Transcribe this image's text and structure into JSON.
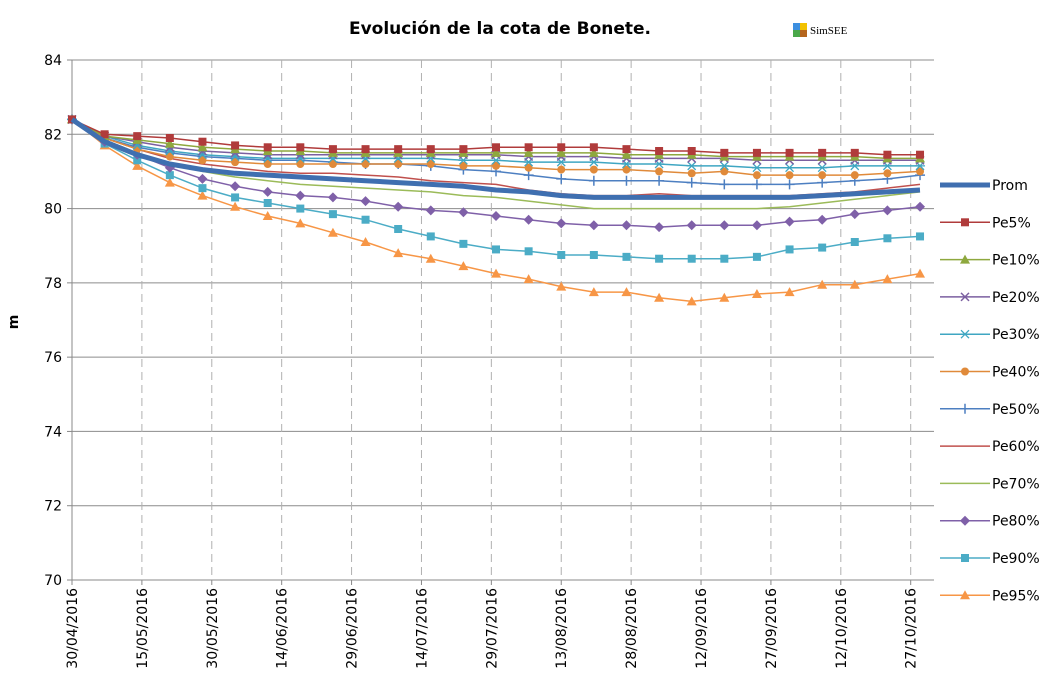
{
  "chart_data": {
    "type": "line",
    "title": "Evolución de la cota de Bonete.",
    "logo": "SimSEE",
    "y_label": "m",
    "x": [
      "30/04/2016",
      "07/05/2016",
      "14/05/2016",
      "21/05/2016",
      "28/05/2016",
      "04/06/2016",
      "11/06/2016",
      "18/06/2016",
      "25/06/2016",
      "02/07/2016",
      "09/07/2016",
      "16/07/2016",
      "23/07/2016",
      "30/07/2016",
      "06/08/2016",
      "13/08/2016",
      "20/08/2016",
      "27/08/2016",
      "03/09/2016",
      "10/09/2016",
      "17/09/2016",
      "24/09/2016",
      "01/10/2016",
      "08/10/2016",
      "15/10/2016",
      "22/10/2016",
      "29/10/2016"
    ],
    "xlim": [
      "30/04/2016",
      "01/11/2016"
    ],
    "xticks": [
      "30/04/2016",
      "15/05/2016",
      "30/05/2016",
      "14/06/2016",
      "29/06/2016",
      "14/07/2016",
      "29/07/2016",
      "13/08/2016",
      "28/08/2016",
      "12/09/2016",
      "27/09/2016",
      "12/10/2016",
      "27/10/2016"
    ],
    "ylim": [
      70,
      84
    ],
    "yticks": [
      70,
      72,
      74,
      76,
      78,
      80,
      82,
      84
    ],
    "grid": true,
    "legend": "right",
    "series": [
      {
        "name": "Prom",
        "color": "#3f6fb0",
        "marker": "none",
        "line_width": 5,
        "values": [
          82.4,
          81.8,
          81.45,
          81.2,
          81.05,
          80.95,
          80.9,
          80.85,
          80.8,
          80.75,
          80.7,
          80.65,
          80.6,
          80.5,
          80.45,
          80.35,
          80.3,
          80.3,
          80.3,
          80.3,
          80.3,
          80.3,
          80.3,
          80.35,
          80.4,
          80.45,
          80.5
        ]
      },
      {
        "name": "Pe5%",
        "color": "#b03b3b",
        "marker": "square",
        "line_width": 1.5,
        "values": [
          82.4,
          82.0,
          81.95,
          81.9,
          81.8,
          81.7,
          81.65,
          81.65,
          81.6,
          81.6,
          81.6,
          81.6,
          81.6,
          81.65,
          81.65,
          81.65,
          81.65,
          81.6,
          81.55,
          81.55,
          81.5,
          81.5,
          81.5,
          81.5,
          81.5,
          81.45,
          81.45
        ]
      },
      {
        "name": "Pe10%",
        "color": "#8ea83e",
        "marker": "triangle",
        "line_width": 1.5,
        "values": [
          82.4,
          81.95,
          81.85,
          81.75,
          81.65,
          81.6,
          81.55,
          81.55,
          81.5,
          81.5,
          81.5,
          81.5,
          81.5,
          81.5,
          81.5,
          81.5,
          81.5,
          81.45,
          81.45,
          81.45,
          81.4,
          81.4,
          81.4,
          81.4,
          81.4,
          81.35,
          81.35
        ]
      },
      {
        "name": "Pe20%",
        "color": "#7b5fa0",
        "marker": "x",
        "line_width": 1.5,
        "values": [
          82.4,
          81.95,
          81.8,
          81.65,
          81.55,
          81.5,
          81.45,
          81.45,
          81.45,
          81.45,
          81.45,
          81.45,
          81.45,
          81.45,
          81.4,
          81.4,
          81.4,
          81.35,
          81.35,
          81.35,
          81.35,
          81.3,
          81.3,
          81.3,
          81.3,
          81.3,
          81.3
        ]
      },
      {
        "name": "Pe30%",
        "color": "#3fa6c2",
        "marker": "star",
        "line_width": 1.5,
        "values": [
          82.4,
          81.95,
          81.7,
          81.55,
          81.45,
          81.4,
          81.35,
          81.35,
          81.35,
          81.35,
          81.35,
          81.35,
          81.3,
          81.3,
          81.25,
          81.25,
          81.25,
          81.2,
          81.2,
          81.15,
          81.15,
          81.1,
          81.1,
          81.1,
          81.15,
          81.15,
          81.15
        ]
      },
      {
        "name": "Pe40%",
        "color": "#e08a3a",
        "marker": "circle",
        "line_width": 1.5,
        "values": [
          82.4,
          81.9,
          81.6,
          81.4,
          81.3,
          81.25,
          81.2,
          81.2,
          81.2,
          81.2,
          81.2,
          81.2,
          81.15,
          81.15,
          81.1,
          81.05,
          81.05,
          81.05,
          81.0,
          80.95,
          81.0,
          80.9,
          80.9,
          80.9,
          80.9,
          80.95,
          81.0
        ]
      },
      {
        "name": "Pe50%",
        "color": "#4d7fc1",
        "marker": "plus",
        "line_width": 1.5,
        "values": [
          82.4,
          81.9,
          81.65,
          81.5,
          81.4,
          81.35,
          81.3,
          81.3,
          81.25,
          81.2,
          81.2,
          81.15,
          81.05,
          81.0,
          80.9,
          80.8,
          80.75,
          80.75,
          80.75,
          80.7,
          80.65,
          80.65,
          80.65,
          80.7,
          80.75,
          80.8,
          80.9
        ]
      },
      {
        "name": "Pe60%",
        "color": "#c0504d",
        "marker": "none",
        "line_width": 1.5,
        "values": [
          82.4,
          81.9,
          81.6,
          81.35,
          81.2,
          81.1,
          81.0,
          80.95,
          80.95,
          80.9,
          80.85,
          80.75,
          80.7,
          80.65,
          80.5,
          80.4,
          80.35,
          80.35,
          80.4,
          80.35,
          80.35,
          80.35,
          80.35,
          80.4,
          80.45,
          80.55,
          80.65
        ]
      },
      {
        "name": "Pe70%",
        "color": "#9bbb59",
        "marker": "none",
        "line_width": 1.5,
        "values": [
          82.4,
          81.85,
          81.5,
          81.2,
          81.0,
          80.85,
          80.75,
          80.65,
          80.6,
          80.55,
          80.5,
          80.45,
          80.35,
          80.3,
          80.2,
          80.1,
          80.0,
          80.0,
          80.0,
          80.0,
          80.0,
          80.0,
          80.05,
          80.15,
          80.25,
          80.35,
          80.45
        ]
      },
      {
        "name": "Pe80%",
        "color": "#7f60a8",
        "marker": "diamond",
        "line_width": 1.5,
        "values": [
          82.4,
          81.8,
          81.45,
          81.1,
          80.8,
          80.6,
          80.45,
          80.35,
          80.3,
          80.2,
          80.05,
          79.95,
          79.9,
          79.8,
          79.7,
          79.6,
          79.55,
          79.55,
          79.5,
          79.55,
          79.55,
          79.55,
          79.65,
          79.7,
          79.85,
          79.95,
          80.05
        ]
      },
      {
        "name": "Pe90%",
        "color": "#4bacc6",
        "marker": "square",
        "line_width": 1.5,
        "values": [
          82.4,
          81.75,
          81.3,
          80.9,
          80.55,
          80.3,
          80.15,
          80.0,
          79.85,
          79.7,
          79.45,
          79.25,
          79.05,
          78.9,
          78.85,
          78.75,
          78.75,
          78.7,
          78.65,
          78.65,
          78.65,
          78.7,
          78.9,
          78.95,
          79.1,
          79.2,
          79.25
        ]
      },
      {
        "name": "Pe95%",
        "color": "#f79646",
        "marker": "triangle",
        "line_width": 1.5,
        "values": [
          82.4,
          81.7,
          81.15,
          80.7,
          80.35,
          80.05,
          79.8,
          79.6,
          79.35,
          79.1,
          78.8,
          78.65,
          78.45,
          78.25,
          78.1,
          77.9,
          77.75,
          77.75,
          77.6,
          77.5,
          77.6,
          77.7,
          77.75,
          77.95,
          77.95,
          78.1,
          78.25
        ]
      }
    ]
  }
}
